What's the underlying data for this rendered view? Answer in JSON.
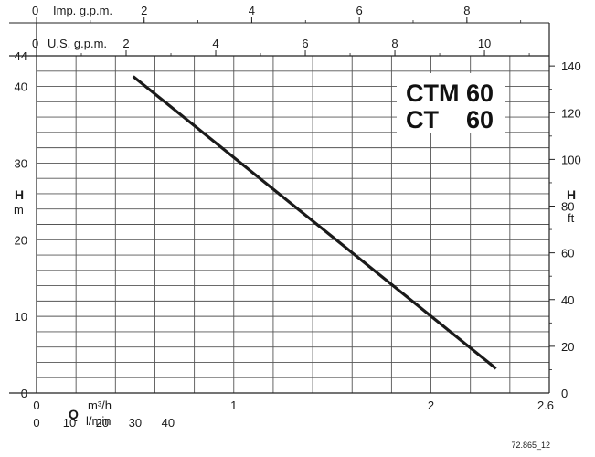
{
  "chart_data": {
    "type": "line",
    "title_lines": [
      "CTM 60",
      "CT    60"
    ],
    "reference_code": "72.865_12",
    "x_axis": {
      "unit_m3h": "m³/h",
      "unit_lmin": "l/min",
      "symbol": "Q",
      "range_m3h": [
        0,
        2.6
      ],
      "ticks_m3h": [
        "0",
        "1",
        "2",
        "2.6"
      ],
      "ticks_lmin": [
        "0",
        "10",
        "20",
        "30",
        "40"
      ],
      "top_usgpm_label": "U.S. g.p.m.",
      "top_usgpm_ticks": [
        "0",
        "2",
        "4",
        "6",
        "8",
        "10"
      ],
      "top_impgpm_label": "Imp. g.p.m.",
      "top_impgpm_ticks": [
        "0",
        "2",
        "4",
        "6",
        "8"
      ]
    },
    "y_axis": {
      "symbol": "H",
      "unit_left": "m",
      "unit_right": "ft",
      "range_m": [
        0,
        44
      ],
      "ticks_m": [
        "0",
        "10",
        "20",
        "30",
        "40",
        "44"
      ],
      "ticks_ft": [
        "20",
        "40",
        "60",
        "80",
        "100",
        "120",
        "140"
      ]
    },
    "grid": true,
    "series": [
      {
        "x": [
          0.49,
          2.33
        ],
        "y": [
          41.3,
          3.2
        ],
        "color": "#1a1a1a"
      }
    ]
  }
}
